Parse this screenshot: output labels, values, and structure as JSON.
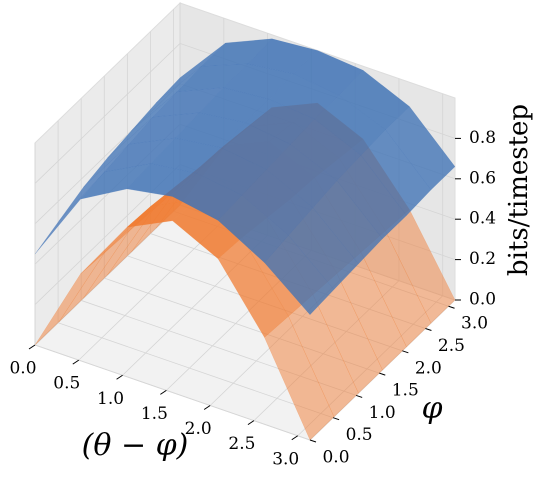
{
  "chart_data": {
    "type": "surface",
    "xlabel": "(θ − φ)",
    "ylabel": "φ",
    "zlabel": "bits/timestep",
    "x": [
      0,
      0.52,
      1.05,
      1.57,
      2.09,
      2.62,
      3.14
    ],
    "y": [
      0,
      0.52,
      1.05,
      1.57,
      2.09,
      2.62,
      3.14
    ],
    "xlim": [
      0,
      3.14
    ],
    "ylim": [
      0,
      3.14
    ],
    "zlim": [
      0,
      1.0
    ],
    "xticks": [
      {
        "value": 0,
        "label": "0.0"
      },
      0.5,
      {
        "value": 1,
        "label": "1.0"
      },
      1.5,
      {
        "value": 2,
        "label": "2.0"
      },
      2.5,
      {
        "value": 3,
        "label": "3.0"
      }
    ],
    "yticks": [
      {
        "value": 0,
        "label": "0.0"
      },
      0.5,
      {
        "value": 1,
        "label": "1.0"
      },
      1.5,
      {
        "value": 2,
        "label": "2.0"
      },
      2.5,
      {
        "value": 3,
        "label": "3.0"
      }
    ],
    "zticks": [
      {
        "value": 0,
        "label": "0.0"
      },
      0.2,
      0.4,
      0.6,
      0.8
    ],
    "grid": true,
    "series": [
      {
        "color": "#f07a30",
        "values": [
          [
            0,
            0.43,
            0.74,
            0.85,
            0.74,
            0.43,
            0
          ],
          [
            0,
            0.42,
            0.73,
            0.84,
            0.73,
            0.42,
            0
          ],
          [
            0,
            0.41,
            0.71,
            0.82,
            0.71,
            0.41,
            0
          ],
          [
            0,
            0.4,
            0.69,
            0.8,
            0.69,
            0.4,
            0
          ],
          [
            0,
            0.39,
            0.68,
            0.78,
            0.68,
            0.39,
            0
          ],
          [
            0,
            0.38,
            0.66,
            0.76,
            0.66,
            0.38,
            0
          ],
          [
            0,
            0.37,
            0.64,
            0.74,
            0.64,
            0.37,
            0
          ]
        ]
      },
      {
        "color": "#3f72b5",
        "values": [
          [
            0.45,
            0.8,
            0.93,
            0.97,
            0.93,
            0.8,
            0.62
          ],
          [
            0.5,
            0.82,
            0.94,
            0.97,
            0.94,
            0.82,
            0.63
          ],
          [
            0.55,
            0.84,
            0.95,
            0.98,
            0.95,
            0.84,
            0.64
          ],
          [
            0.58,
            0.86,
            0.96,
            0.99,
            0.96,
            0.86,
            0.65
          ],
          [
            0.6,
            0.87,
            0.97,
            0.99,
            0.97,
            0.87,
            0.65
          ],
          [
            0.62,
            0.88,
            0.97,
            1.0,
            0.97,
            0.88,
            0.66
          ],
          [
            0.63,
            0.88,
            0.98,
            1.0,
            0.98,
            0.88,
            0.66
          ]
        ]
      }
    ]
  }
}
